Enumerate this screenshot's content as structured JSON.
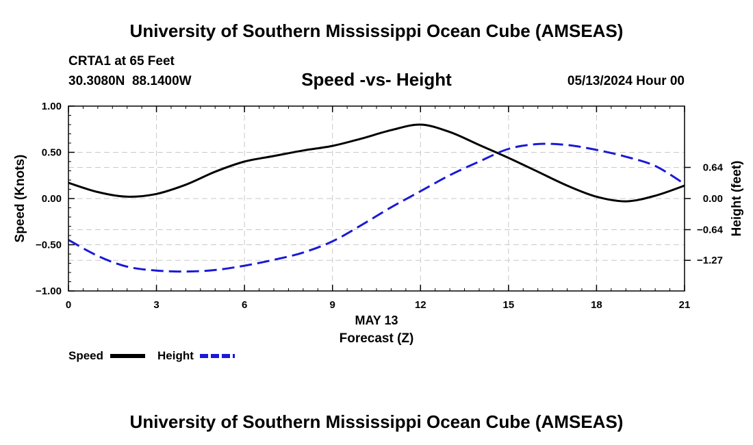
{
  "header": {
    "title": "University of Southern Mississippi Ocean Cube (AMSEAS)",
    "station": "CRTA1 at 65 Feet",
    "coords": "30.3080N  88.1400W",
    "datetime": "05/13/2024 Hour 00"
  },
  "footer": {
    "title": "University of Southern Mississippi Ocean Cube (AMSEAS)"
  },
  "colors": {
    "speed": "#000000",
    "height": "#1a1ad6",
    "grid": "#c8c8c8"
  },
  "chart_data": {
    "type": "line",
    "title": "Speed -vs- Height",
    "xlabel_date": "MAY 13",
    "xlabel": "Forecast (Z)",
    "ylabel_left": "Speed (Knots)",
    "ylabel_right": "Height (feet)",
    "xlim": [
      0,
      21
    ],
    "ylim_left": [
      -1.0,
      1.0
    ],
    "ylim_right": [
      -1.9,
      1.9
    ],
    "x_ticks": [
      0,
      3,
      6,
      9,
      12,
      15,
      18,
      21
    ],
    "x_tick_labels": [
      "0",
      "3",
      "6",
      "9",
      "12",
      "15",
      "18",
      "21"
    ],
    "y_left_ticks": [
      1.0,
      0.5,
      0.0,
      -0.5,
      -1.0
    ],
    "y_left_tick_labels": [
      "1.00",
      "0.50",
      "0.00",
      "−0.50",
      "−1.00"
    ],
    "y_right_ticks": [
      0.64,
      0.0,
      -0.64,
      -1.27
    ],
    "y_right_tick_labels": [
      "0.64",
      "0.00",
      "−0.64",
      "−1.27"
    ],
    "grid": true,
    "series": [
      {
        "name": "Speed",
        "axis": "left",
        "style": "solid",
        "x": [
          0,
          1,
          2,
          3,
          4,
          5,
          6,
          7,
          8,
          9,
          10,
          11,
          12,
          13,
          14,
          15,
          16,
          17,
          18,
          19,
          20,
          21
        ],
        "values": [
          0.17,
          0.07,
          0.02,
          0.05,
          0.15,
          0.29,
          0.4,
          0.46,
          0.52,
          0.57,
          0.65,
          0.74,
          0.8,
          0.72,
          0.58,
          0.44,
          0.29,
          0.14,
          0.02,
          -0.03,
          0.03,
          0.14
        ]
      },
      {
        "name": "Height",
        "axis": "right",
        "style": "dashed",
        "x": [
          0,
          1,
          2,
          3,
          4,
          5,
          6,
          7,
          8,
          9,
          10,
          11,
          12,
          13,
          14,
          15,
          16,
          17,
          18,
          19,
          20,
          21
        ],
        "values": [
          -0.85,
          -1.18,
          -1.4,
          -1.48,
          -1.5,
          -1.47,
          -1.38,
          -1.26,
          -1.11,
          -0.88,
          -0.54,
          -0.18,
          0.15,
          0.48,
          0.76,
          1.02,
          1.12,
          1.1,
          1.0,
          0.86,
          0.67,
          0.3
        ]
      }
    ],
    "legend": [
      "Speed",
      "Height"
    ],
    "legend_position": "bottom-left"
  }
}
